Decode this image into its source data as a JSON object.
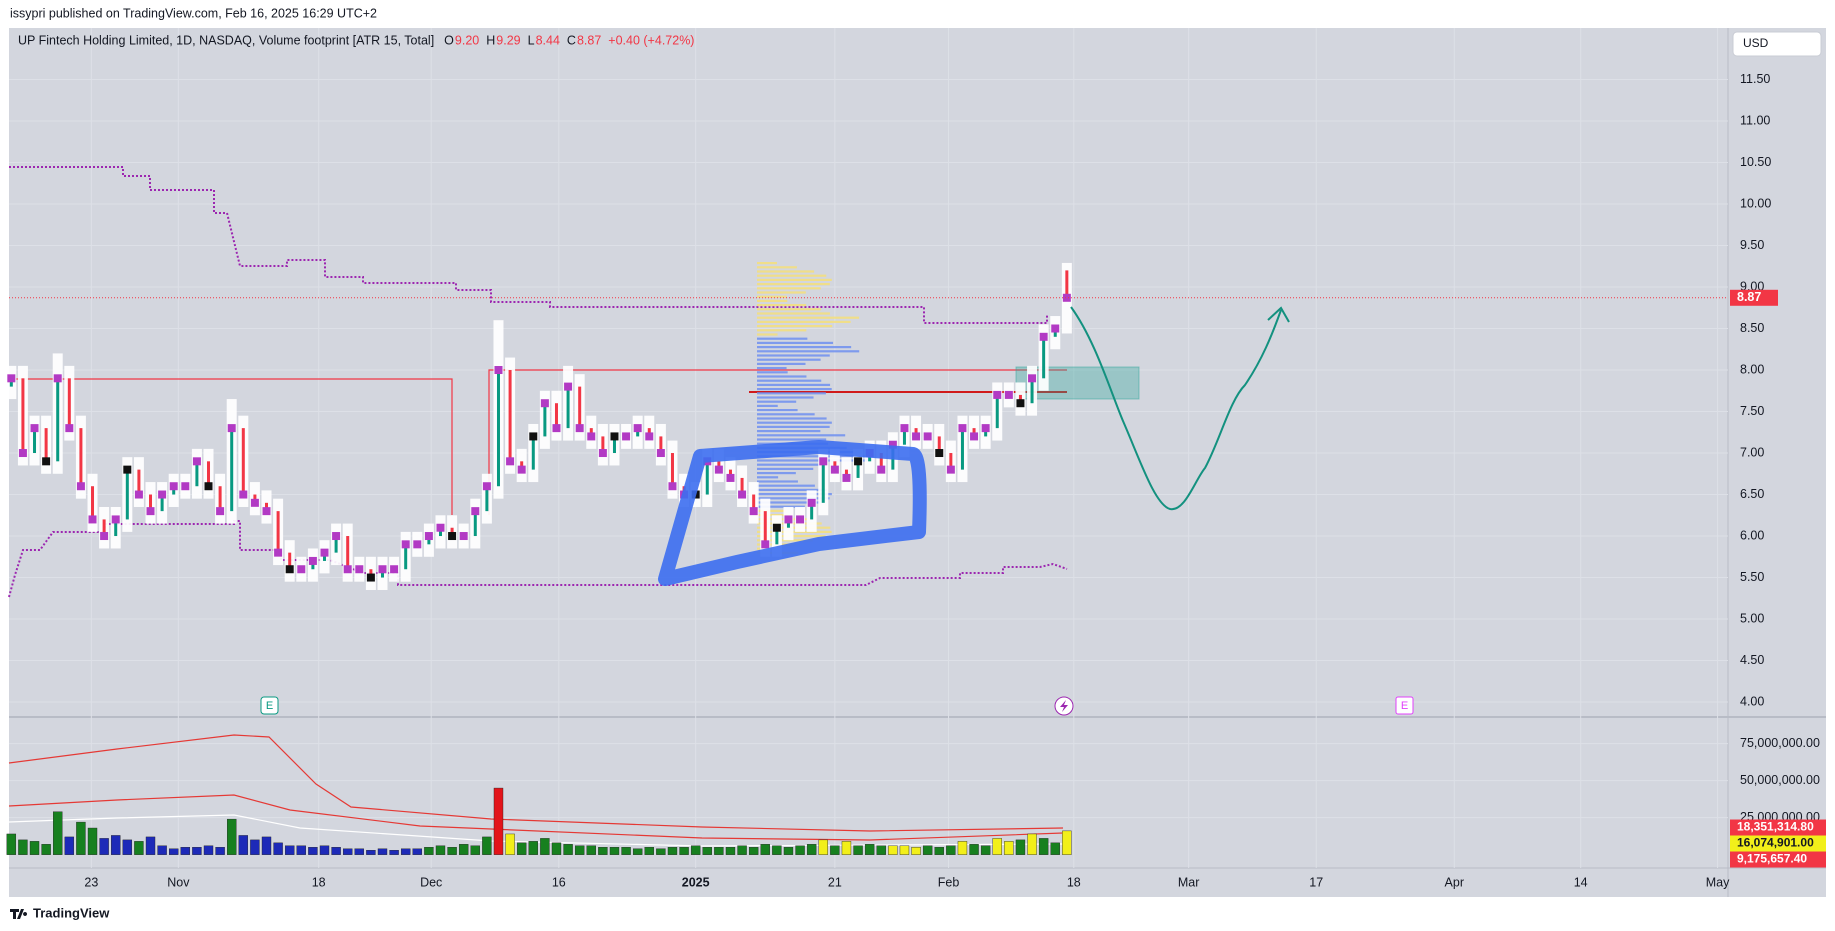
{
  "header": "issypri published on TradingView.com, Feb 16, 2025 16:29 UTC+2",
  "currency": "USD",
  "brand": "TradingView",
  "markers": [
    "E",
    "E"
  ],
  "chart_data": {
    "type": "candlestick",
    "title": "UP Fintech Holding Limited, 1D, NASDAQ, Volume footprint [ATR 15, Total]",
    "legend": [
      {
        "key": "O",
        "value": "9.20"
      },
      {
        "key": "H",
        "value": "9.29"
      },
      {
        "key": "L",
        "value": "8.44"
      },
      {
        "key": "C",
        "value": "8.87"
      }
    ],
    "change": "+0.40 (+4.72%)",
    "up_color": "#089981",
    "down_color": "#f23645",
    "open": [
      7.8,
      7.9,
      7.0,
      7.3,
      6.9,
      7.9,
      7.3,
      6.6,
      6.2,
      6.0,
      6.2,
      6.8,
      6.5,
      6.3,
      6.5,
      6.6,
      6.6,
      6.9,
      6.6,
      6.3,
      7.3,
      6.5,
      6.4,
      6.3,
      5.8,
      5.6,
      5.6,
      5.7,
      5.8,
      6.0,
      5.6,
      5.6,
      5.5,
      5.6,
      5.6,
      5.9,
      5.9,
      6.0,
      6.1,
      6.0,
      6.0,
      6.3,
      6.6,
      8.0,
      6.9,
      6.8,
      7.2,
      7.6,
      7.3,
      7.8,
      7.3,
      7.2,
      7.0,
      7.2,
      7.2,
      7.3,
      7.2,
      7.0,
      6.6,
      6.5,
      6.5,
      6.9,
      6.8,
      6.7,
      6.5,
      6.3,
      5.9,
      6.1,
      6.2,
      6.2,
      6.4,
      6.9,
      6.8,
      6.7,
      6.9,
      7.0,
      6.8,
      7.1,
      7.3,
      7.2,
      7.2,
      7.0,
      6.8,
      7.3,
      7.2,
      7.3,
      7.7,
      7.7,
      7.6,
      7.9,
      8.4,
      9.2
    ],
    "high": [
      8.05,
      8.05,
      7.45,
      7.45,
      8.2,
      8.05,
      7.45,
      6.75,
      6.35,
      6.35,
      6.95,
      6.95,
      6.65,
      6.65,
      6.75,
      6.75,
      7.05,
      7.05,
      6.75,
      7.65,
      7.45,
      6.65,
      6.55,
      6.45,
      5.95,
      5.75,
      5.85,
      5.95,
      6.15,
      6.15,
      5.75,
      5.75,
      5.75,
      5.75,
      6.05,
      6.05,
      6.15,
      6.25,
      6.25,
      6.15,
      6.45,
      6.75,
      8.6,
      8.15,
      7.05,
      7.35,
      7.75,
      7.75,
      8.05,
      7.95,
      7.45,
      7.35,
      7.35,
      7.35,
      7.45,
      7.45,
      7.35,
      7.15,
      6.75,
      6.65,
      7.05,
      7.05,
      6.95,
      6.85,
      6.65,
      6.45,
      6.25,
      6.35,
      6.35,
      6.55,
      7.05,
      7.05,
      6.95,
      7.05,
      7.15,
      7.15,
      7.25,
      7.45,
      7.45,
      7.35,
      7.35,
      7.15,
      7.45,
      7.45,
      7.45,
      7.85,
      7.85,
      7.85,
      8.05,
      8.55,
      8.65,
      9.29
    ],
    "low": [
      7.65,
      6.85,
      6.85,
      6.75,
      6.75,
      7.15,
      6.45,
      6.05,
      5.85,
      5.85,
      6.05,
      6.35,
      6.15,
      6.15,
      6.35,
      6.45,
      6.45,
      6.45,
      6.15,
      6.15,
      6.35,
      6.25,
      6.15,
      5.65,
      5.45,
      5.45,
      5.45,
      5.55,
      5.65,
      5.45,
      5.45,
      5.35,
      5.35,
      5.45,
      5.45,
      5.75,
      5.75,
      5.85,
      5.85,
      5.85,
      5.85,
      6.15,
      6.45,
      6.75,
      6.65,
      6.65,
      7.05,
      7.15,
      7.15,
      7.15,
      7.05,
      6.85,
      6.85,
      7.05,
      7.05,
      7.05,
      6.85,
      6.45,
      6.35,
      6.35,
      6.35,
      6.65,
      6.55,
      6.35,
      6.15,
      5.75,
      5.75,
      5.95,
      6.05,
      6.05,
      6.25,
      6.65,
      6.55,
      6.55,
      6.75,
      6.65,
      6.65,
      6.95,
      7.05,
      7.05,
      6.85,
      6.65,
      6.65,
      7.05,
      7.05,
      7.15,
      7.55,
      7.45,
      7.45,
      7.75,
      8.25,
      8.44
    ],
    "close": [
      7.9,
      7.0,
      7.3,
      6.9,
      7.9,
      7.3,
      6.6,
      6.2,
      6.0,
      6.2,
      6.8,
      6.5,
      6.3,
      6.5,
      6.6,
      6.6,
      6.9,
      6.6,
      6.3,
      7.3,
      6.5,
      6.4,
      6.3,
      5.8,
      5.6,
      5.6,
      5.7,
      5.8,
      6.0,
      5.6,
      5.6,
      5.5,
      5.6,
      5.6,
      5.9,
      5.9,
      6.0,
      6.1,
      6.0,
      6.0,
      6.3,
      6.6,
      8.0,
      6.9,
      6.8,
      7.2,
      7.6,
      7.3,
      7.8,
      7.3,
      7.2,
      7.0,
      7.2,
      7.2,
      7.3,
      7.2,
      7.0,
      6.6,
      6.5,
      6.5,
      6.9,
      6.8,
      6.7,
      6.5,
      6.3,
      5.9,
      6.1,
      6.2,
      6.2,
      6.4,
      6.9,
      6.8,
      6.7,
      6.9,
      7.0,
      6.8,
      7.1,
      7.3,
      7.2,
      7.2,
      7.0,
      6.8,
      7.3,
      7.2,
      7.3,
      7.7,
      7.7,
      7.6,
      7.9,
      8.4,
      8.5,
      8.87
    ],
    "xlim": [
      -0.2,
      148
    ],
    "xticks": [
      {
        "value": 6.9,
        "label": "23"
      },
      {
        "value": 14.4,
        "label": "Nov"
      },
      {
        "value": 26.5,
        "label": "18"
      },
      {
        "value": 36.2,
        "label": "Dec"
      },
      {
        "value": 47.2,
        "label": "16"
      },
      {
        "value": 59,
        "label": "2025"
      },
      {
        "value": 71,
        "label": "21"
      },
      {
        "value": 80.8,
        "label": "Feb"
      },
      {
        "value": 91.6,
        "label": "18"
      },
      {
        "value": 101.5,
        "label": "Mar"
      },
      {
        "value": 112.5,
        "label": "17"
      },
      {
        "value": 124.4,
        "label": "Apr"
      },
      {
        "value": 135.3,
        "label": "14"
      },
      {
        "value": 147.1,
        "label": "May"
      }
    ],
    "ylim": [
      3.82,
      12.12
    ],
    "yticks": [
      {
        "value": 4,
        "label": "4.00"
      },
      {
        "value": 4.5,
        "label": "4.50"
      },
      {
        "value": 5,
        "label": "5.00"
      },
      {
        "value": 5.5,
        "label": "5.50"
      },
      {
        "value": 6,
        "label": "6.00"
      },
      {
        "value": 6.5,
        "label": "6.50"
      },
      {
        "value": 7,
        "label": "7.00"
      },
      {
        "value": 7.5,
        "label": "7.50"
      },
      {
        "value": 8,
        "label": "8.00"
      },
      {
        "value": 8.5,
        "label": "8.50"
      },
      {
        "value": 9,
        "label": "9.00"
      },
      {
        "value": 9.5,
        "label": "9.50"
      },
      {
        "value": 10,
        "label": "10.00"
      },
      {
        "value": 10.5,
        "label": "10.50"
      },
      {
        "value": 11,
        "label": "11.00"
      },
      {
        "value": 11.5,
        "label": "11.50"
      }
    ],
    "last_price_color": "#f23645",
    "volume": {
      "values": [
        14000000.0,
        10000000.0,
        9000000.0,
        7000000.0,
        29000000.0,
        12000000.0,
        22000000.0,
        18000000.0,
        11000000.0,
        13000000.0,
        10000000.0,
        9000000.0,
        12000000.0,
        6000000.0,
        4000000.0,
        5000000.0,
        5000000.0,
        6000000.0,
        5000000.0,
        24000000.0,
        13000000.0,
        10000000.0,
        12000000.0,
        8000000.0,
        6000000.0,
        6000000.0,
        5000000.0,
        6000000.0,
        5000000.0,
        4000000.0,
        4000000.0,
        3000000.0,
        4000000.0,
        3000000.0,
        4000000.0,
        4000000.0,
        5000000.0,
        6000000.0,
        5000000.0,
        7000000.0,
        6000000.0,
        12000000.0,
        45000000.0,
        14000000.0,
        8000000.0,
        9000000.0,
        11000000.0,
        8000000.0,
        7000000.0,
        6000000.0,
        6000000.0,
        5000000.0,
        5000000.0,
        5000000.0,
        4000000.0,
        5000000.0,
        4000000.0,
        5000000.0,
        5000000.0,
        6000000.0,
        5000000.0,
        5000000.0,
        5000000.0,
        6000000.0,
        5000000.0,
        7000000.0,
        6000000.0,
        5000000.0,
        6000000.0,
        7000000.0,
        10000000.0,
        6000000.0,
        9000000.0,
        6000000.0,
        7000000.0,
        6000000.0,
        6000000.0,
        6000000.0,
        5000000.0,
        6000000.0,
        5000000.0,
        6000000.0,
        9000000.0,
        7000000.0,
        6000000.0,
        11000000.0,
        9000000.0,
        10000000.0,
        14000000.0,
        11000000.0,
        8000000.0,
        16074901
      ],
      "colors": [
        "#17801f",
        "#17801f",
        "#17801f",
        "#17801f",
        "#17801f",
        "#1d2ab8",
        "#17801f",
        "#17801f",
        "#1d2ab8",
        "#1d2ab8",
        "#1d2ab8",
        "#17801f",
        "#1d2ab8",
        "#1d2ab8",
        "#1d2ab8",
        "#1d2ab8",
        "#1d2ab8",
        "#1d2ab8",
        "#1d2ab8",
        "#17801f",
        "#1d2ab8",
        "#1d2ab8",
        "#1d2ab8",
        "#1d2ab8",
        "#1d2ab8",
        "#1d2ab8",
        "#1d2ab8",
        "#1d2ab8",
        "#1d2ab8",
        "#1d2ab8",
        "#1d2ab8",
        "#1d2ab8",
        "#1d2ab8",
        "#1d2ab8",
        "#1d2ab8",
        "#1d2ab8",
        "#17801f",
        "#17801f",
        "#17801f",
        "#17801f",
        "#17801f",
        "#17801f",
        "#e3141a",
        "#f2ef1a",
        "#17801f",
        "#17801f",
        "#17801f",
        "#17801f",
        "#17801f",
        "#17801f",
        "#17801f",
        "#17801f",
        "#17801f",
        "#17801f",
        "#17801f",
        "#17801f",
        "#17801f",
        "#17801f",
        "#17801f",
        "#17801f",
        "#17801f",
        "#17801f",
        "#17801f",
        "#17801f",
        "#17801f",
        "#17801f",
        "#17801f",
        "#17801f",
        "#17801f",
        "#17801f",
        "#f2ef1a",
        "#17801f",
        "#f2ef1a",
        "#17801f",
        "#17801f",
        "#17801f",
        "#f2ef1a",
        "#f2ef1a",
        "#f2ef1a",
        "#17801f",
        "#17801f",
        "#17801f",
        "#f2ef1a",
        "#17801f",
        "#17801f",
        "#f2ef1a",
        "#f2ef1a",
        "#17801f",
        "#f2ef1a",
        "#17801f",
        "#17801f",
        "#f2ef1a"
      ],
      "ylim": [
        -9000000,
        93000000
      ],
      "yticks": [
        {
          "value": 25000000,
          "label": "25,000,000.00"
        },
        {
          "value": 50000000,
          "label": "50,000,000.00"
        },
        {
          "value": 75000000,
          "label": "75,000,000.00"
        }
      ],
      "indicator_labels": [
        {
          "value": 18351314.8,
          "label": "18,351,314.80",
          "color": "#f23645"
        },
        {
          "value": 16074901,
          "label": "16,074,901.00",
          "color": "#f2ef1a"
        },
        {
          "value": 9175657.4,
          "label": "9,175,657.40",
          "color": "#f23645"
        }
      ]
    }
  }
}
